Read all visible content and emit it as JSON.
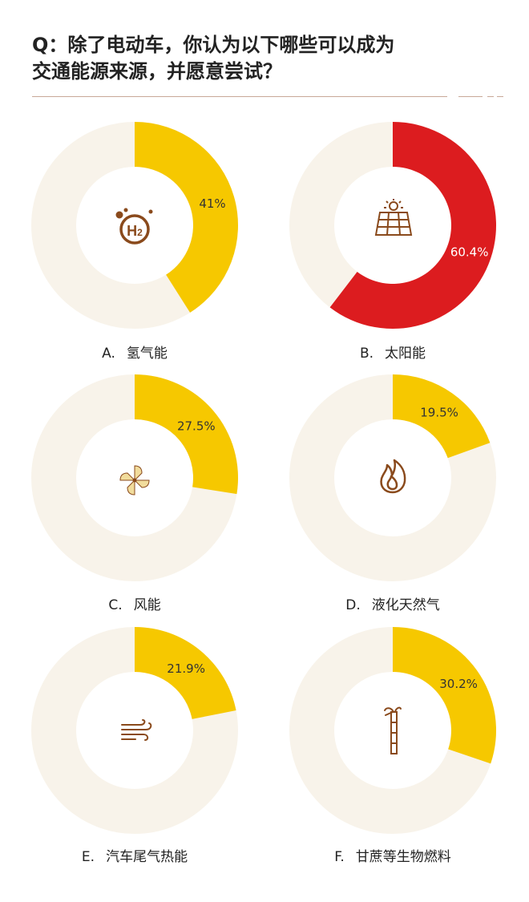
{
  "title": {
    "line1": "Q：除了电动车，你认为以下哪些可以成为",
    "line2": "交通能源来源，并愿意尝试？"
  },
  "colors": {
    "ring_bg": "#f8f3ea",
    "yellow": "#f6c800",
    "red": "#dc1c1f",
    "icon_brown": "#8a4a1c",
    "icon_pale": "#f1dc9c",
    "divider": "#c8a898"
  },
  "chart_data": [
    {
      "type": "pie",
      "letter": "A.",
      "category": "氢气能",
      "value": 41.0,
      "label": "41%",
      "color": "#f6c800",
      "icon": "hydrogen-icon"
    },
    {
      "type": "pie",
      "letter": "B.",
      "category": "太阳能",
      "value": 60.4,
      "label": "60.4%",
      "color": "#dc1c1f",
      "icon": "solar-panel-icon"
    },
    {
      "type": "pie",
      "letter": "C.",
      "category": "风能",
      "value": 27.5,
      "label": "27.5%",
      "color": "#f6c800",
      "icon": "wind-turbine-icon"
    },
    {
      "type": "pie",
      "letter": "D.",
      "category": "液化天然气",
      "value": 19.5,
      "label": "19.5%",
      "color": "#f6c800",
      "icon": "flame-icon"
    },
    {
      "type": "pie",
      "letter": "E.",
      "category": "汽车尾气热能",
      "value": 21.9,
      "label": "21.9%",
      "color": "#f6c800",
      "icon": "exhaust-wind-icon"
    },
    {
      "type": "pie",
      "letter": "F.",
      "category": "甘蔗等生物燃料",
      "value": 30.2,
      "label": "30.2%",
      "color": "#f6c800",
      "icon": "sugarcane-icon"
    }
  ]
}
